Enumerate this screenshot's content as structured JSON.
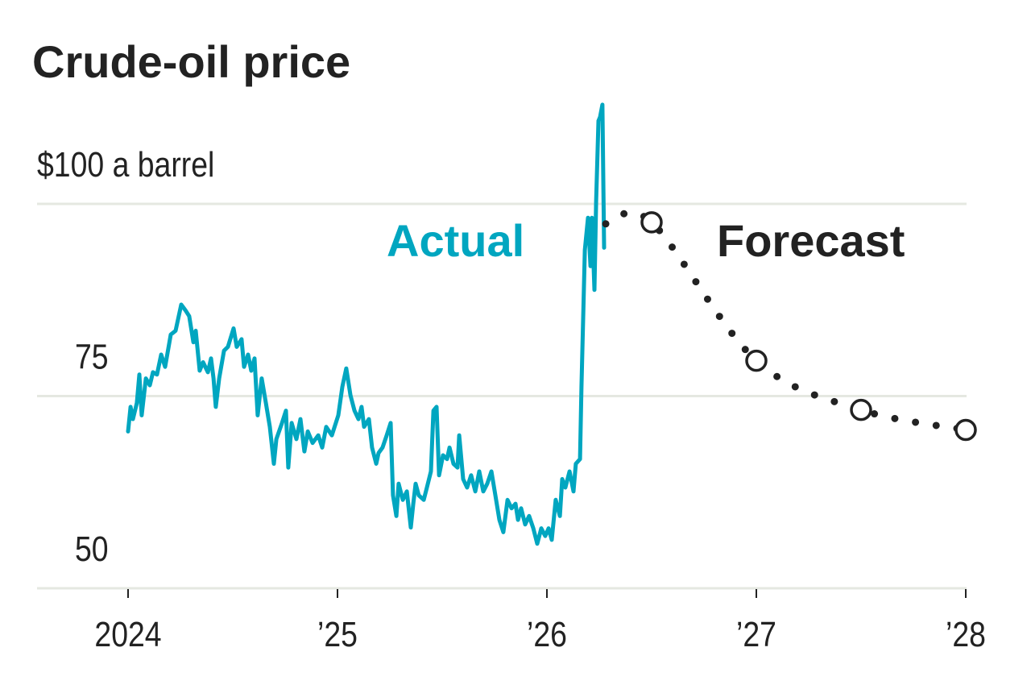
{
  "chart_data": {
    "type": "line",
    "title": "Crude-oil price",
    "ylabel": "$100 a barrel",
    "ylim": [
      50,
      115
    ],
    "xlim": [
      2023.6,
      2028.1
    ],
    "y_ticks": [
      {
        "value": 50,
        "label": "50"
      },
      {
        "value": 75,
        "label": "75"
      },
      {
        "value": 100,
        "label": "$100 a barrel"
      }
    ],
    "x_ticks": [
      {
        "value": 2024,
        "label": "2024"
      },
      {
        "value": 2025,
        "label": "’25"
      },
      {
        "value": 2026,
        "label": "’26"
      },
      {
        "value": 2027,
        "label": "’27"
      },
      {
        "value": 2028,
        "label": "’28"
      }
    ],
    "grid": true,
    "colors": {
      "actual": "#00A6C0",
      "forecast": "#222222",
      "grid": "#e5e8e1"
    },
    "series": [
      {
        "name": "Actual",
        "style": "solid",
        "points": [
          [
            2024.0,
            70.4
          ],
          [
            2024.012,
            73.6
          ],
          [
            2024.023,
            72.0
          ],
          [
            2024.042,
            74.1
          ],
          [
            2024.054,
            77.8
          ],
          [
            2024.065,
            72.5
          ],
          [
            2024.085,
            77.3
          ],
          [
            2024.104,
            76.4
          ],
          [
            2024.119,
            78.1
          ],
          [
            2024.138,
            77.8
          ],
          [
            2024.158,
            80.4
          ],
          [
            2024.177,
            78.8
          ],
          [
            2024.204,
            83.0
          ],
          [
            2024.227,
            83.5
          ],
          [
            2024.254,
            86.9
          ],
          [
            2024.273,
            86.2
          ],
          [
            2024.292,
            85.4
          ],
          [
            2024.312,
            82.0
          ],
          [
            2024.323,
            83.5
          ],
          [
            2024.342,
            78.3
          ],
          [
            2024.358,
            79.4
          ],
          [
            2024.381,
            78.1
          ],
          [
            2024.396,
            79.9
          ],
          [
            2024.408,
            77.3
          ],
          [
            2024.419,
            73.6
          ],
          [
            2024.435,
            77.3
          ],
          [
            2024.458,
            80.9
          ],
          [
            2024.477,
            81.4
          ],
          [
            2024.504,
            83.8
          ],
          [
            2024.519,
            81.4
          ],
          [
            2024.542,
            82.4
          ],
          [
            2024.554,
            78.8
          ],
          [
            2024.573,
            80.4
          ],
          [
            2024.588,
            78.3
          ],
          [
            2024.604,
            79.9
          ],
          [
            2024.619,
            72.5
          ],
          [
            2024.638,
            77.3
          ],
          [
            2024.658,
            74.1
          ],
          [
            2024.677,
            71.0
          ],
          [
            2024.696,
            66.2
          ],
          [
            2024.708,
            69.4
          ],
          [
            2024.735,
            71.5
          ],
          [
            2024.754,
            73.1
          ],
          [
            2024.765,
            65.7
          ],
          [
            2024.781,
            71.5
          ],
          [
            2024.804,
            69.4
          ],
          [
            2024.823,
            72.0
          ],
          [
            2024.842,
            67.8
          ],
          [
            2024.858,
            70.4
          ],
          [
            2024.881,
            68.9
          ],
          [
            2024.908,
            69.9
          ],
          [
            2024.927,
            68.3
          ],
          [
            2024.946,
            71.0
          ],
          [
            2024.973,
            69.9
          ],
          [
            2025.004,
            72.5
          ],
          [
            2025.023,
            76.2
          ],
          [
            2025.042,
            78.6
          ],
          [
            2025.062,
            75.1
          ],
          [
            2025.081,
            73.1
          ],
          [
            2025.1,
            72.0
          ],
          [
            2025.115,
            73.6
          ],
          [
            2025.127,
            71.0
          ],
          [
            2025.15,
            72.0
          ],
          [
            2025.165,
            68.3
          ],
          [
            2025.185,
            66.2
          ],
          [
            2025.196,
            67.6
          ],
          [
            2025.215,
            68.3
          ],
          [
            2025.235,
            69.9
          ],
          [
            2025.254,
            71.5
          ],
          [
            2025.265,
            62.1
          ],
          [
            2025.281,
            59.4
          ],
          [
            2025.292,
            63.6
          ],
          [
            2025.312,
            61.5
          ],
          [
            2025.331,
            62.6
          ],
          [
            2025.35,
            57.9
          ],
          [
            2025.362,
            61.0
          ],
          [
            2025.373,
            63.6
          ],
          [
            2025.388,
            62.1
          ],
          [
            2025.412,
            61.5
          ],
          [
            2025.427,
            63.1
          ],
          [
            2025.446,
            65.2
          ],
          [
            2025.458,
            73.1
          ],
          [
            2025.473,
            73.6
          ],
          [
            2025.485,
            64.7
          ],
          [
            2025.504,
            67.3
          ],
          [
            2025.523,
            66.8
          ],
          [
            2025.535,
            68.3
          ],
          [
            2025.554,
            66.2
          ],
          [
            2025.573,
            65.7
          ],
          [
            2025.581,
            69.9
          ],
          [
            2025.6,
            64.2
          ],
          [
            2025.619,
            63.1
          ],
          [
            2025.638,
            64.7
          ],
          [
            2025.658,
            62.6
          ],
          [
            2025.677,
            65.2
          ],
          [
            2025.696,
            62.6
          ],
          [
            2025.715,
            63.6
          ],
          [
            2025.735,
            65.2
          ],
          [
            2025.754,
            62.1
          ],
          [
            2025.773,
            58.9
          ],
          [
            2025.792,
            57.3
          ],
          [
            2025.812,
            61.5
          ],
          [
            2025.831,
            60.4
          ],
          [
            2025.85,
            61.0
          ],
          [
            2025.862,
            58.9
          ],
          [
            2025.877,
            60.4
          ],
          [
            2025.896,
            58.3
          ],
          [
            2025.915,
            59.4
          ],
          [
            2025.935,
            57.8
          ],
          [
            2025.954,
            55.8
          ],
          [
            2025.973,
            57.8
          ],
          [
            2025.992,
            56.8
          ],
          [
            2026.008,
            57.8
          ],
          [
            2026.023,
            56.3
          ],
          [
            2026.042,
            61.5
          ],
          [
            2026.062,
            59.4
          ],
          [
            2026.073,
            64.2
          ],
          [
            2026.088,
            63.1
          ],
          [
            2026.108,
            65.2
          ],
          [
            2026.127,
            62.6
          ],
          [
            2026.138,
            66.2
          ],
          [
            2026.158,
            66.8
          ],
          [
            2026.165,
            76.2
          ],
          [
            2026.181,
            94.0
          ],
          [
            2026.196,
            98.2
          ],
          [
            2026.208,
            91.9
          ],
          [
            2026.215,
            98.2
          ],
          [
            2026.227,
            88.8
          ],
          [
            2026.235,
            100.3
          ],
          [
            2026.246,
            110.8
          ],
          [
            2026.254,
            111.3
          ],
          [
            2026.265,
            112.9
          ],
          [
            2026.273,
            94.3
          ]
        ]
      },
      {
        "name": "Forecast",
        "style": "dotted",
        "points": [
          [
            2026.281,
            97.4
          ],
          [
            2026.5,
            97.6
          ],
          [
            2027.0,
            79.6
          ],
          [
            2027.5,
            73.2
          ],
          [
            2028.0,
            70.6
          ]
        ],
        "markers": [
          [
            2026.5,
            97.6
          ],
          [
            2027.0,
            79.6
          ],
          [
            2027.5,
            73.2
          ],
          [
            2028.0,
            70.6
          ]
        ]
      }
    ]
  }
}
